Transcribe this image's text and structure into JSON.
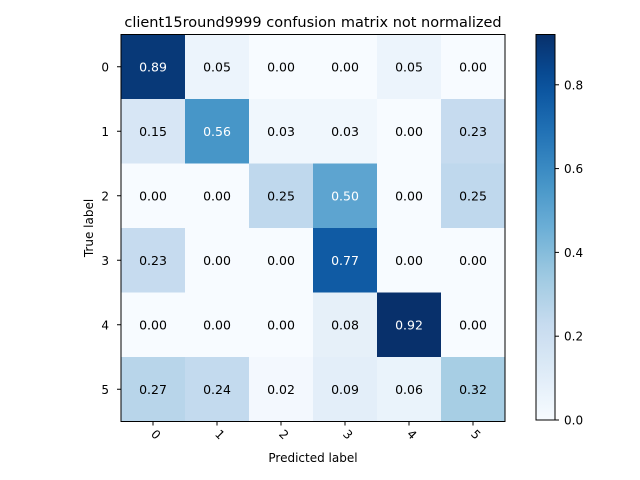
{
  "chart_data": {
    "type": "heatmap",
    "title": "client15round9999 confusion matrix not normalized",
    "xlabel": "Predicted label",
    "ylabel": "True label",
    "x_categories": [
      "0",
      "1",
      "2",
      "3",
      "4",
      "5"
    ],
    "y_categories": [
      "0",
      "1",
      "2",
      "3",
      "4",
      "5"
    ],
    "values": [
      [
        0.89,
        0.05,
        0.0,
        0.0,
        0.05,
        0.0
      ],
      [
        0.15,
        0.56,
        0.03,
        0.03,
        0.0,
        0.23
      ],
      [
        0.0,
        0.0,
        0.25,
        0.5,
        0.0,
        0.25
      ],
      [
        0.23,
        0.0,
        0.0,
        0.77,
        0.0,
        0.0
      ],
      [
        0.0,
        0.0,
        0.0,
        0.08,
        0.92,
        0.0
      ],
      [
        0.27,
        0.24,
        0.02,
        0.09,
        0.06,
        0.32
      ]
    ],
    "value_labels": [
      [
        "0.89",
        "0.05",
        "0.00",
        "0.00",
        "0.05",
        "0.00"
      ],
      [
        "0.15",
        "0.56",
        "0.03",
        "0.03",
        "0.00",
        "0.23"
      ],
      [
        "0.00",
        "0.00",
        "0.25",
        "0.50",
        "0.00",
        "0.25"
      ],
      [
        "0.23",
        "0.00",
        "0.00",
        "0.77",
        "0.00",
        "0.00"
      ],
      [
        "0.00",
        "0.00",
        "0.00",
        "0.08",
        "0.92",
        "0.00"
      ],
      [
        "0.27",
        "0.24",
        "0.02",
        "0.09",
        "0.06",
        "0.32"
      ]
    ],
    "colormap": "Blues",
    "colorbar": {
      "range": [
        0,
        0.92
      ],
      "ticks": [
        0.0,
        0.2,
        0.4,
        0.6,
        0.8
      ],
      "tick_labels": [
        "0.0",
        "0.2",
        "0.4",
        "0.6",
        "0.8"
      ]
    },
    "x_tick_rotation": "45 degrees",
    "grid": false
  }
}
